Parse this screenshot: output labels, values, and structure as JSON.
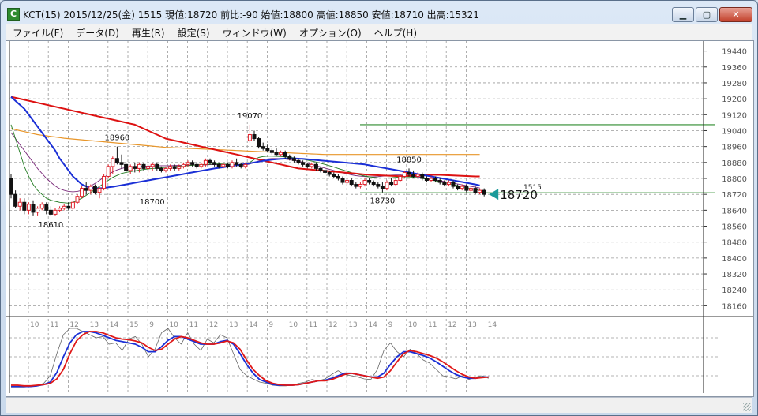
{
  "window": {
    "title": "KCT(15) 2015/12/25(金) 1515 現値:18720 前比:-90 始値:18800 高値:18850 安値:18710 出高:15321",
    "icon_letter": "C",
    "minimize_icon": "minimize-icon",
    "maximize_icon": "maximize-icon",
    "close_icon": "close-icon"
  },
  "menu": [
    {
      "label": "ファイル(F)"
    },
    {
      "label": "データ(D)"
    },
    {
      "label": "再生(R)"
    },
    {
      "label": "設定(S)"
    },
    {
      "label": "ウィンドウ(W)"
    },
    {
      "label": "オプション(O)"
    },
    {
      "label": "ヘルプ(H)"
    }
  ],
  "colors": {
    "up": "#e0202a",
    "down": "#111111",
    "ma_red": "#dd1111",
    "ma_blue": "#1a2fd6",
    "ma_orange": "#e8962a",
    "ma_green": "#1f7a1f",
    "ma_purple": "#7a2a7a",
    "osc_red": "#e01818",
    "osc_blue": "#1a2fd6",
    "marker": "#1a9a9a",
    "hline_green": "#2e8b2e"
  },
  "chart_data": {
    "type": "candlestick",
    "y_ticks": [
      19440,
      19360,
      19280,
      19200,
      19120,
      19040,
      18960,
      18880,
      18800,
      18720,
      18640,
      18560,
      18480,
      18400,
      18320,
      18240,
      18160
    ],
    "ylim": [
      18110,
      19490
    ],
    "x_ticks": [
      "10",
      "11",
      "12",
      "13",
      "14",
      "15",
      "9",
      "10",
      "11",
      "12",
      "13",
      "14",
      "9",
      "10",
      "11",
      "12",
      "13",
      "14",
      "9",
      "10",
      "11",
      "12",
      "13",
      "14"
    ],
    "price_labels": [
      {
        "text": "18610",
        "bar": 9,
        "value": 18610,
        "position": "below"
      },
      {
        "text": "18960",
        "bar": 24,
        "value": 18960,
        "position": "above"
      },
      {
        "text": "18700",
        "bar": 28,
        "value": 18700,
        "position": "right"
      },
      {
        "text": "19070",
        "bar": 54,
        "value": 19070,
        "position": "above"
      },
      {
        "text": "18730",
        "bar": 84,
        "value": 18730,
        "position": "below"
      },
      {
        "text": "18850",
        "bar": 90,
        "value": 18850,
        "position": "above"
      }
    ],
    "current_price": 18720,
    "current_price_label": "18720",
    "time_label": "1515",
    "hline_level": 19070,
    "ohlc": [
      [
        18800,
        18820,
        18700,
        18720
      ],
      [
        18720,
        18740,
        18650,
        18660
      ],
      [
        18660,
        18700,
        18640,
        18680
      ],
      [
        18680,
        18700,
        18620,
        18640
      ],
      [
        18640,
        18680,
        18620,
        18670
      ],
      [
        18670,
        18690,
        18610,
        18630
      ],
      [
        18630,
        18660,
        18610,
        18650
      ],
      [
        18650,
        18680,
        18640,
        18670
      ],
      [
        18670,
        18680,
        18620,
        18640
      ],
      [
        18640,
        18660,
        18610,
        18620
      ],
      [
        18620,
        18650,
        18610,
        18640
      ],
      [
        18640,
        18660,
        18630,
        18650
      ],
      [
        18650,
        18670,
        18640,
        18660
      ],
      [
        18660,
        18680,
        18640,
        18650
      ],
      [
        18650,
        18690,
        18640,
        18680
      ],
      [
        18680,
        18720,
        18670,
        18710
      ],
      [
        18710,
        18760,
        18700,
        18750
      ],
      [
        18750,
        18780,
        18720,
        18740
      ],
      [
        18740,
        18770,
        18720,
        18760
      ],
      [
        18760,
        18770,
        18720,
        18730
      ],
      [
        18730,
        18760,
        18700,
        18750
      ],
      [
        18750,
        18820,
        18740,
        18810
      ],
      [
        18810,
        18870,
        18800,
        18860
      ],
      [
        18860,
        18910,
        18820,
        18900
      ],
      [
        18900,
        18960,
        18870,
        18880
      ],
      [
        18880,
        18920,
        18850,
        18870
      ],
      [
        18870,
        18880,
        18830,
        18840
      ],
      [
        18840,
        18870,
        18820,
        18860
      ],
      [
        18860,
        18880,
        18830,
        18850
      ],
      [
        18850,
        18880,
        18830,
        18870
      ],
      [
        18870,
        18880,
        18840,
        18850
      ],
      [
        18850,
        18870,
        18830,
        18860
      ],
      [
        18860,
        18880,
        18840,
        18870
      ],
      [
        18870,
        18880,
        18840,
        18850
      ],
      [
        18850,
        18860,
        18830,
        18840
      ],
      [
        18840,
        18860,
        18830,
        18850
      ],
      [
        18850,
        18870,
        18840,
        18860
      ],
      [
        18860,
        18870,
        18840,
        18850
      ],
      [
        18850,
        18870,
        18840,
        18860
      ],
      [
        18860,
        18880,
        18850,
        18870
      ],
      [
        18870,
        18890,
        18860,
        18880
      ],
      [
        18880,
        18890,
        18860,
        18870
      ],
      [
        18870,
        18880,
        18850,
        18860
      ],
      [
        18860,
        18880,
        18850,
        18870
      ],
      [
        18870,
        18900,
        18860,
        18890
      ],
      [
        18890,
        18900,
        18870,
        18880
      ],
      [
        18880,
        18890,
        18860,
        18870
      ],
      [
        18870,
        18880,
        18850,
        18860
      ],
      [
        18860,
        18880,
        18850,
        18870
      ],
      [
        18870,
        18880,
        18850,
        18860
      ],
      [
        18860,
        18890,
        18850,
        18880
      ],
      [
        18880,
        18900,
        18860,
        18870
      ],
      [
        18870,
        18880,
        18850,
        18860
      ],
      [
        18860,
        18880,
        18850,
        18870
      ],
      [
        18990,
        19070,
        18980,
        19020
      ],
      [
        19020,
        19040,
        18990,
        19000
      ],
      [
        19000,
        19010,
        18950,
        18960
      ],
      [
        18960,
        18980,
        18940,
        18950
      ],
      [
        18950,
        18970,
        18930,
        18940
      ],
      [
        18940,
        18950,
        18920,
        18930
      ],
      [
        18930,
        18950,
        18910,
        18920
      ],
      [
        18920,
        18940,
        18910,
        18930
      ],
      [
        18930,
        18940,
        18900,
        18910
      ],
      [
        18910,
        18920,
        18890,
        18900
      ],
      [
        18900,
        18910,
        18880,
        18890
      ],
      [
        18890,
        18900,
        18870,
        18880
      ],
      [
        18880,
        18890,
        18860,
        18870
      ],
      [
        18870,
        18880,
        18850,
        18860
      ],
      [
        18860,
        18880,
        18850,
        18870
      ],
      [
        18870,
        18880,
        18840,
        18850
      ],
      [
        18850,
        18860,
        18830,
        18840
      ],
      [
        18840,
        18850,
        18820,
        18830
      ],
      [
        18830,
        18840,
        18810,
        18820
      ],
      [
        18820,
        18830,
        18800,
        18810
      ],
      [
        18810,
        18820,
        18790,
        18800
      ],
      [
        18800,
        18810,
        18770,
        18780
      ],
      [
        18780,
        18800,
        18770,
        18790
      ],
      [
        18790,
        18800,
        18760,
        18770
      ],
      [
        18770,
        18780,
        18750,
        18760
      ],
      [
        18760,
        18780,
        18750,
        18770
      ],
      [
        18770,
        18800,
        18760,
        18790
      ],
      [
        18790,
        18800,
        18770,
        18780
      ],
      [
        18780,
        18790,
        18760,
        18770
      ],
      [
        18770,
        18780,
        18750,
        18760
      ],
      [
        18760,
        18780,
        18730,
        18750
      ],
      [
        18750,
        18790,
        18740,
        18780
      ],
      [
        18780,
        18800,
        18760,
        18770
      ],
      [
        18770,
        18800,
        18760,
        18790
      ],
      [
        18790,
        18820,
        18780,
        18810
      ],
      [
        18810,
        18840,
        18800,
        18830
      ],
      [
        18830,
        18850,
        18810,
        18820
      ],
      [
        18820,
        18840,
        18800,
        18810
      ],
      [
        18810,
        18830,
        18800,
        18820
      ],
      [
        18820,
        18830,
        18790,
        18800
      ],
      [
        18800,
        18810,
        18780,
        18790
      ],
      [
        18790,
        18810,
        18780,
        18800
      ],
      [
        18800,
        18810,
        18780,
        18790
      ],
      [
        18790,
        18800,
        18770,
        18780
      ],
      [
        18780,
        18790,
        18760,
        18770
      ],
      [
        18770,
        18790,
        18760,
        18780
      ],
      [
        18780,
        18790,
        18750,
        18760
      ],
      [
        18760,
        18770,
        18740,
        18750
      ],
      [
        18750,
        18770,
        18740,
        18760
      ],
      [
        18760,
        18770,
        18730,
        18740
      ],
      [
        18740,
        18760,
        18730,
        18750
      ],
      [
        18750,
        18760,
        18720,
        18730
      ],
      [
        18730,
        18750,
        18720,
        18740
      ],
      [
        18740,
        18750,
        18710,
        18720
      ]
    ],
    "ma_red": [
      19210,
      19205,
      19200,
      19195,
      19190,
      19185,
      19180,
      19175,
      19170,
      19165,
      19160,
      19155,
      19150,
      19145,
      19140,
      19135,
      19130,
      19125,
      19120,
      19115,
      19110,
      19105,
      19100,
      19095,
      19090,
      19085,
      19080,
      19075,
      19070,
      19060,
      19050,
      19040,
      19030,
      19020,
      19010,
      19000,
      18995,
      18990,
      18985,
      18980,
      18975,
      18970,
      18965,
      18960,
      18955,
      18950,
      18945,
      18940,
      18935,
      18930,
      18925,
      18920,
      18915,
      18910,
      18905,
      18900,
      18895,
      18890,
      18885,
      18880,
      18875,
      18870,
      18865,
      18860,
      18855,
      18850,
      18848,
      18846,
      18844,
      18842,
      18840,
      18838,
      18836,
      18834,
      18832,
      18830,
      18828,
      18826,
      18824,
      18822,
      18820,
      18818,
      18817,
      18816,
      18815,
      18814,
      18813,
      18812,
      18811,
      18812,
      18813,
      18814,
      18815,
      18816,
      18817,
      18818,
      18818,
      18818,
      18817,
      18816,
      18815,
      18814,
      18813,
      18812,
      18811,
      18810,
      18810
    ],
    "ma_blue": [
      19210,
      19190,
      19170,
      19150,
      19120,
      19090,
      19060,
      19030,
      19000,
      18970,
      18940,
      18900,
      18870,
      18840,
      18810,
      18790,
      18770,
      18760,
      18755,
      18750,
      18750,
      18752,
      18755,
      18758,
      18762,
      18766,
      18770,
      18774,
      18778,
      18782,
      18786,
      18790,
      18794,
      18798,
      18802,
      18806,
      18810,
      18814,
      18818,
      18822,
      18826,
      18830,
      18834,
      18838,
      18842,
      18846,
      18850,
      18853,
      18856,
      18860,
      18863,
      18866,
      18869,
      18872,
      18876,
      18880,
      18884,
      18888,
      18891,
      18894,
      18896,
      18898,
      18899,
      18900,
      18900,
      18899,
      18898,
      18896,
      18894,
      18892,
      18890,
      18888,
      18886,
      18884,
      18882,
      18880,
      18878,
      18876,
      18874,
      18872,
      18870,
      18866,
      18862,
      18858,
      18854,
      18850,
      18846,
      18842,
      18838,
      18834,
      18830,
      18826,
      18822,
      18818,
      18814,
      18810,
      18806,
      18802,
      18798,
      18794,
      18790,
      18786,
      18782,
      18778,
      18774,
      18770,
      18765
    ],
    "ma_orange": [
      19050,
      19045,
      19040,
      19035,
      19030,
      19025,
      19020,
      19017,
      19014,
      19011,
      19008,
      19005,
      19002,
      19000,
      18998,
      18996,
      18994,
      18992,
      18990,
      18988,
      18986,
      18984,
      18982,
      18980,
      18978,
      18976,
      18974,
      18972,
      18970,
      18968,
      18966,
      18964,
      18962,
      18960,
      18958,
      18956,
      18955,
      18954,
      18953,
      18952,
      18951,
      18950,
      18949,
      18948,
      18947,
      18946,
      18945,
      18944,
      18943,
      18942,
      18941,
      18940,
      18939,
      18938,
      18937,
      18936,
      18935,
      18934,
      18933,
      18932,
      18931,
      18930,
      18929,
      18928,
      18927,
      18926,
      18925,
      18924,
      18923,
      18922,
      18921,
      18920,
      18920,
      18920,
      18920,
      18920,
      18920,
      18920,
      18920,
      18920,
      18920,
      18920,
      18920,
      18920,
      18920,
      18920,
      18920,
      18920,
      18920,
      18920,
      18920,
      18920,
      18920,
      18920,
      18920,
      18920,
      18920,
      18920,
      18920,
      18920,
      18920,
      18920,
      18920,
      18920,
      18920,
      18920,
      18920
    ],
    "ma_green": [
      19070,
      19000,
      18930,
      18860,
      18810,
      18770,
      18740,
      18720,
      18700,
      18690,
      18685,
      18680,
      18678,
      18676,
      18680,
      18690,
      18700,
      18715,
      18730,
      18745,
      18760,
      18775,
      18790,
      18805,
      18815,
      18825,
      18830,
      18834,
      18838,
      18842,
      18845,
      18848,
      18850,
      18852,
      18854,
      18856,
      18858,
      18860,
      18862,
      18863,
      18864,
      18866,
      18868,
      18869,
      18870,
      18871,
      18872,
      18873,
      18872,
      18871,
      18870,
      18869,
      18868,
      18870,
      18880,
      18895,
      18905,
      18910,
      18912,
      18912,
      18911,
      18910,
      18908,
      18906,
      18903,
      18900,
      18896,
      18892,
      18887,
      18882,
      18876,
      18870,
      18864,
      18857,
      18850,
      18843,
      18836,
      18829,
      18823,
      18817,
      18812,
      18808,
      18805,
      18803,
      18802,
      18802,
      18803,
      18805,
      18807,
      18808,
      18808,
      18806,
      18803,
      18800,
      18796,
      18792,
      18788,
      18784,
      18779,
      18774,
      18769,
      18764,
      18759,
      18754,
      18749,
      18744,
      18740
    ],
    "ma_purple": [
      19030,
      19000,
      18970,
      18940,
      18910,
      18880,
      18850,
      18825,
      18800,
      18780,
      18762,
      18748,
      18740,
      18735,
      18733,
      18735,
      18740,
      18750,
      18762,
      18775,
      18790,
      18805,
      18820,
      18833,
      18843,
      18850,
      18855,
      18858,
      18860,
      18861,
      18862,
      18862,
      18863,
      18863,
      18864,
      18864,
      18864,
      18865,
      18865,
      18866,
      18866,
      18867,
      18867,
      18868,
      18868,
      18869,
      18869,
      18870,
      18870,
      18870,
      18870,
      18869,
      18868,
      18868,
      18872,
      18880,
      18888,
      18894,
      18898,
      18900,
      18900,
      18899,
      18897,
      18894,
      18890,
      18886,
      18881,
      18876,
      18870,
      18864,
      18858,
      18852,
      18846,
      18840,
      18834,
      18828,
      18823,
      18818,
      18814,
      18811,
      18809,
      18808,
      18808,
      18809,
      18811,
      18814,
      18816,
      18817,
      18817,
      18816,
      18814,
      18811,
      18808,
      18804,
      18800,
      18796,
      18792,
      18788,
      18784,
      18780,
      18776,
      18772,
      18768,
      18764,
      18760,
      18756,
      18752
    ],
    "osc_ylim": [
      0,
      100
    ],
    "osc_red": [
      5,
      5,
      4,
      4,
      5,
      6,
      8,
      15,
      30,
      55,
      75,
      85,
      90,
      90,
      88,
      84,
      80,
      78,
      77,
      75,
      72,
      65,
      60,
      62,
      70,
      78,
      82,
      80,
      76,
      72,
      70,
      70,
      72,
      75,
      72,
      62,
      45,
      30,
      20,
      12,
      8,
      6,
      5,
      5,
      6,
      8,
      10,
      12,
      12,
      14,
      18,
      22,
      24,
      22,
      20,
      18,
      16,
      18,
      28,
      42,
      55,
      60,
      58,
      55,
      52,
      48,
      42,
      35,
      28,
      22,
      18,
      16,
      17,
      18
    ],
    "osc_blue": [
      3,
      3,
      3,
      3,
      4,
      6,
      10,
      25,
      50,
      72,
      85,
      90,
      90,
      88,
      84,
      80,
      76,
      74,
      72,
      70,
      65,
      58,
      58,
      66,
      76,
      82,
      82,
      78,
      74,
      70,
      70,
      70,
      74,
      76,
      70,
      55,
      38,
      24,
      14,
      10,
      6,
      5,
      5,
      5,
      6,
      8,
      10,
      12,
      13,
      16,
      20,
      24,
      24,
      22,
      20,
      18,
      18,
      24,
      38,
      50,
      58,
      58,
      55,
      52,
      48,
      42,
      35,
      28,
      22,
      18,
      16,
      16,
      18,
      18
    ],
    "osc_gray": [
      2,
      2,
      2,
      3,
      5,
      8,
      20,
      55,
      85,
      95,
      95,
      90,
      85,
      80,
      82,
      70,
      72,
      60,
      78,
      82,
      70,
      50,
      62,
      88,
      95,
      80,
      70,
      88,
      70,
      60,
      78,
      72,
      85,
      80,
      55,
      30,
      20,
      15,
      10,
      8,
      5,
      4,
      4,
      5,
      8,
      10,
      14,
      12,
      15,
      22,
      28,
      22,
      20,
      18,
      15,
      14,
      30,
      60,
      72,
      58,
      50,
      62,
      55,
      45,
      40,
      30,
      20,
      18,
      15,
      20,
      14,
      18,
      20,
      16
    ]
  }
}
